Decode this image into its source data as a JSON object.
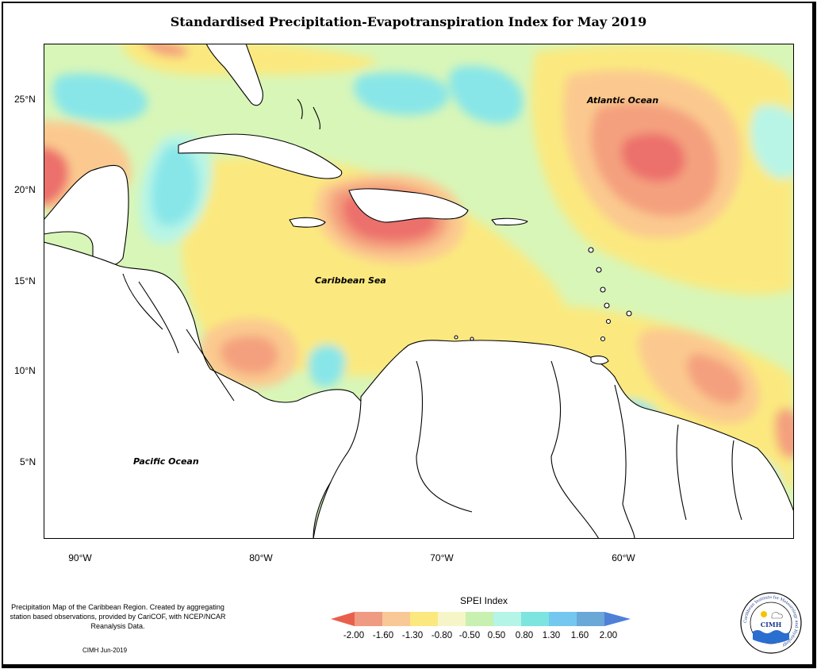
{
  "title": "Standardised Precipitation-Evapotranspiration Index for May 2019",
  "lat_labels": [
    "25°N",
    "20°N",
    "15°N",
    "10°N",
    "5°N"
  ],
  "lon_labels": [
    "90°W",
    "80°W",
    "70°W",
    "60°W"
  ],
  "oceans": {
    "atlantic": "Atlantic Ocean",
    "caribbean": "Caribbean Sea",
    "pacific": "Pacific Ocean"
  },
  "caption": "Precipitation Map of the Caribbean Region. Created by aggregating station based observations, provided by CariCOF, with NCEP/NCAR Reanalysis Data.",
  "credit": "CIMH Jun-2019",
  "legend": {
    "title": "SPEI Index",
    "ticks": [
      "-2.00",
      "-1.60",
      "-1.30",
      "-0.80",
      "-0.50",
      "0.50",
      "0.80",
      "1.30",
      "1.60",
      "2.00"
    ],
    "colors": [
      "#e8604c",
      "#ef9a82",
      "#f8c897",
      "#fbe87f",
      "#f5f5c8",
      "#c8f0b0",
      "#b4f5e8",
      "#7ee4e0",
      "#74c8f0",
      "#6aa8d8",
      "#4f80d8"
    ]
  },
  "logo": {
    "text": "CIMH",
    "ring_text": "Caribbean Institute for Meteorology and Hydrology"
  },
  "colors": {
    "very_dry": "#ec6f6c",
    "dry": "#f4a07e",
    "moderately_dry": "#fbc98f",
    "slightly_dry": "#fbe97f",
    "normal": "#d8f6b8",
    "slightly_wet": "#b8f5e6",
    "moderately_wet": "#88e6e8",
    "wet": "#7ecdf4",
    "land": "#ffffff",
    "coast": "#000000"
  }
}
